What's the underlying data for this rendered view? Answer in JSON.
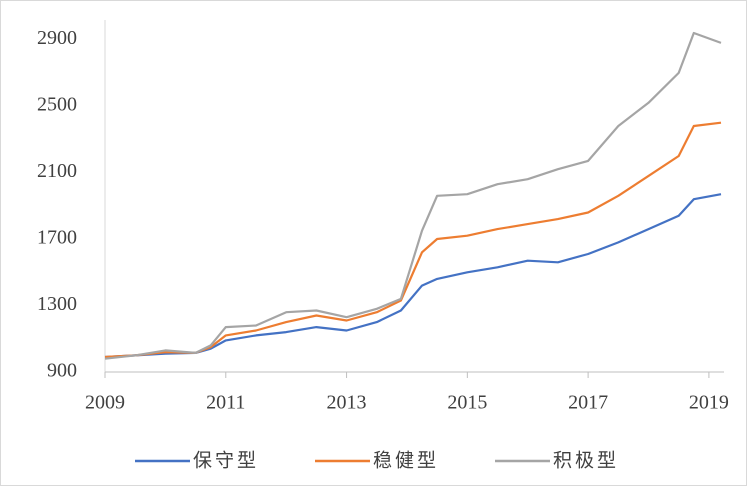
{
  "chart_data": {
    "type": "line",
    "x": [
      2009,
      2009.5,
      2010,
      2010.5,
      2010.75,
      2011,
      2011.5,
      2012,
      2012.5,
      2013,
      2013.5,
      2013.9,
      2014.25,
      2014.5,
      2015,
      2015.5,
      2016,
      2016.5,
      2017,
      2017.5,
      2018,
      2018.5,
      2018.75,
      2019.2
    ],
    "series": [
      {
        "name": "保守型",
        "color": "#4472c4",
        "values": [
          990,
          1000,
          1010,
          1015,
          1040,
          1090,
          1120,
          1140,
          1170,
          1150,
          1200,
          1270,
          1420,
          1460,
          1500,
          1530,
          1570,
          1560,
          1610,
          1680,
          1760,
          1840,
          1940,
          1970
        ]
      },
      {
        "name": "稳健型",
        "color": "#ed7d31",
        "values": [
          990,
          1000,
          1020,
          1015,
          1050,
          1120,
          1150,
          1200,
          1240,
          1210,
          1260,
          1330,
          1620,
          1700,
          1720,
          1760,
          1790,
          1820,
          1860,
          1960,
          2080,
          2200,
          2380,
          2400
        ]
      },
      {
        "name": "积极型",
        "color": "#a5a5a5",
        "values": [
          980,
          1000,
          1030,
          1015,
          1060,
          1170,
          1180,
          1260,
          1270,
          1230,
          1280,
          1340,
          1750,
          1960,
          1970,
          2030,
          2060,
          2120,
          2170,
          2380,
          2520,
          2700,
          2940,
          2880
        ]
      }
    ],
    "xlim": [
      2009,
      2019.25
    ],
    "xticks": [
      2009,
      2011,
      2013,
      2015,
      2017,
      2019
    ],
    "ylim": [
      900,
      3000
    ],
    "yticks": [
      900,
      1300,
      1700,
      2100,
      2500,
      2900
    ],
    "grid": false,
    "legend": "bottom"
  }
}
